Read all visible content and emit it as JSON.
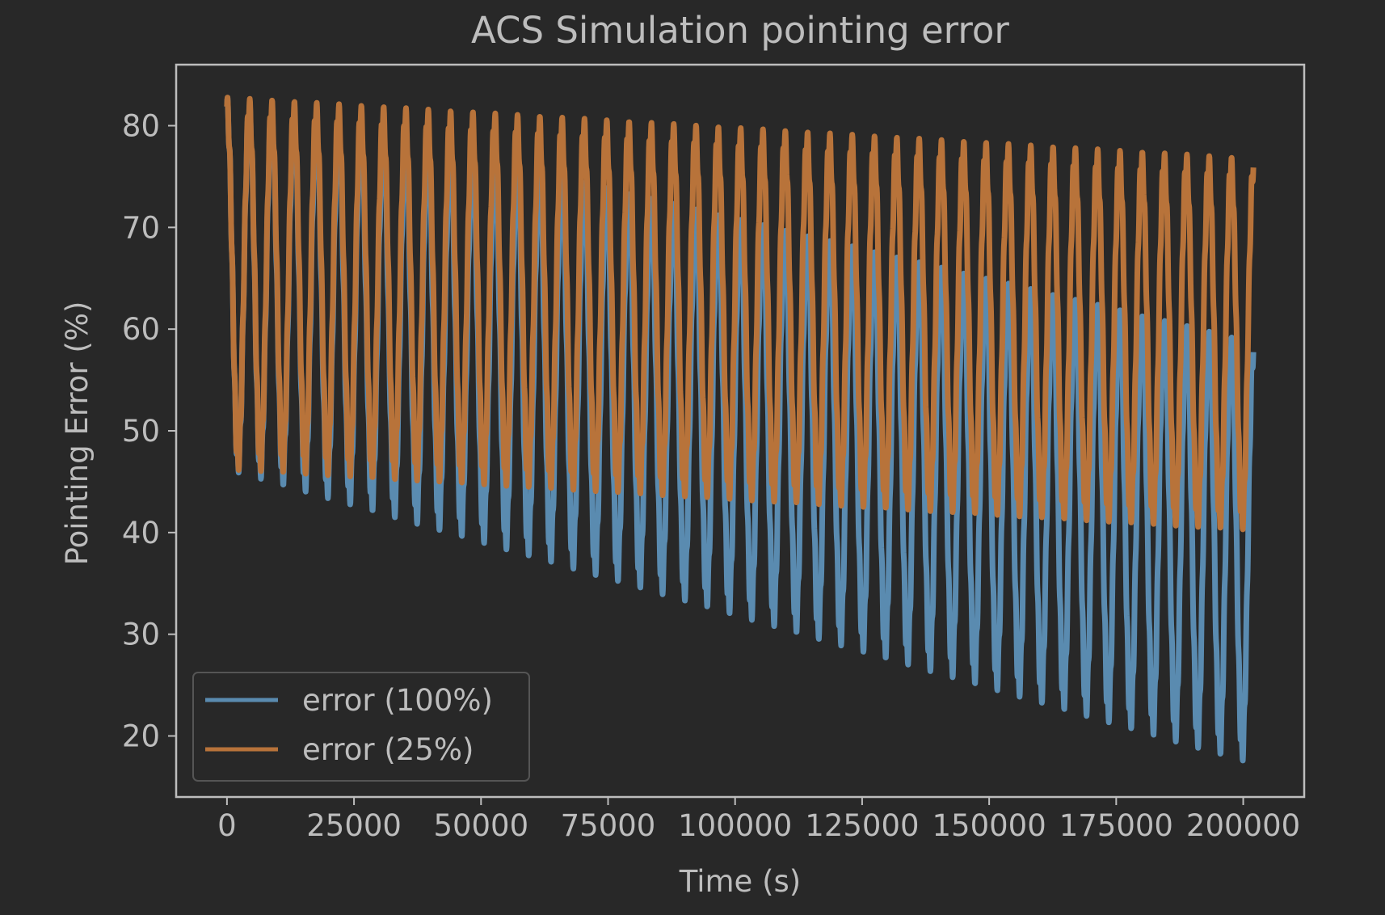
{
  "chart_data": {
    "type": "line",
    "title": "ACS Simulation pointing error",
    "xlabel": "Time (s)",
    "ylabel": "Pointing Error (%)",
    "xlim": [
      -10000,
      212000
    ],
    "ylim": [
      14,
      86
    ],
    "xticks": [
      0,
      25000,
      50000,
      75000,
      100000,
      125000,
      150000,
      175000,
      200000
    ],
    "yticks": [
      20,
      30,
      40,
      50,
      60,
      70,
      80
    ],
    "grid": false,
    "legend_position": "lower-left",
    "colors": {
      "background": "#282828",
      "axes_frame": "#bdbdbd",
      "text": "#bdbdbd"
    },
    "series": [
      {
        "name": "error (100%)",
        "color": "#5a8bb0",
        "x_start": 0,
        "x_end": 202000,
        "cycles": 46,
        "peak_start": 83,
        "peak_end": 59,
        "trough_start": 46,
        "trough_end": 17
      },
      {
        "name": "error (25%)",
        "color": "#b8733a",
        "x_start": 0,
        "x_end": 202000,
        "cycles": 46,
        "peak_start": 83,
        "peak_end": 77,
        "trough_start": 46,
        "trough_end": 40
      }
    ]
  }
}
